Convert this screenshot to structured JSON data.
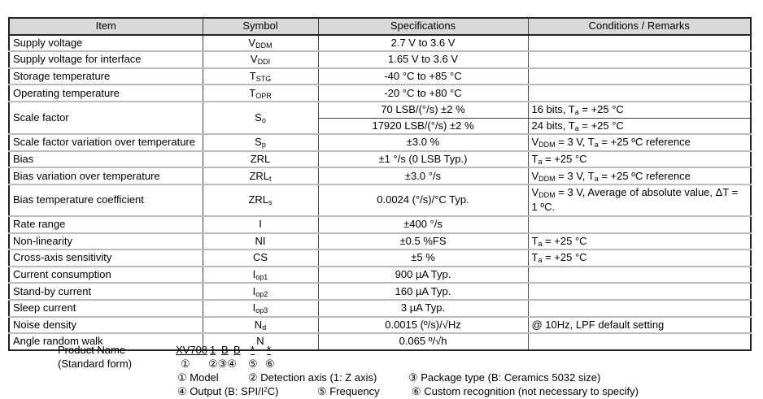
{
  "table": {
    "headers": [
      "Item",
      "Symbol",
      "Specifications",
      "Conditions / Remarks"
    ],
    "rows": [
      {
        "item": "Supply voltage",
        "symbol": {
          "base": "V",
          "sub": "DDM"
        },
        "specs": [
          "2.7 V to 3.6 V"
        ],
        "conds": [
          []
        ]
      },
      {
        "item": "Supply voltage for interface",
        "symbol": {
          "base": "V",
          "sub": "DDI"
        },
        "specs": [
          "1.65 V to 3.6 V"
        ],
        "conds": [
          []
        ]
      },
      {
        "item": "Storage temperature",
        "symbol": {
          "base": "T",
          "sub": "STG"
        },
        "specs": [
          "-40 °C to +85 °C"
        ],
        "conds": [
          []
        ]
      },
      {
        "item": "Operating temperature",
        "symbol": {
          "base": "T",
          "sub": "OPR"
        },
        "specs": [
          "-20 °C to +80 °C"
        ],
        "conds": [
          []
        ]
      },
      {
        "item": "Scale factor",
        "symbol": {
          "base": "S",
          "sub": "o"
        },
        "specs": [
          "70 LSB/(°/s) ±2 %",
          "17920 LSB/(°/s) ±2 %"
        ],
        "conds": [
          [
            {
              "t": "16 bits, T"
            },
            {
              "sub": "a"
            },
            {
              "t": " = +25 °C"
            }
          ],
          [
            {
              "t": "24 bits, T"
            },
            {
              "sub": "a"
            },
            {
              "t": " = +25 °C"
            }
          ]
        ]
      },
      {
        "item": "Scale factor variation over temperature",
        "symbol": {
          "base": "S",
          "sub": "p"
        },
        "specs": [
          "±3.0 %"
        ],
        "conds": [
          [
            {
              "t": "V"
            },
            {
              "sub": "DDM"
            },
            {
              "t": " = 3 V, T"
            },
            {
              "sub": "a"
            },
            {
              "t": " = +25 ºC reference"
            }
          ]
        ]
      },
      {
        "item": "Bias",
        "symbol": {
          "base": "ZRL",
          "sub": ""
        },
        "specs": [
          "±1 °/s (0 LSB Typ.)"
        ],
        "conds": [
          [
            {
              "t": "T"
            },
            {
              "sub": "a"
            },
            {
              "t": " = +25 °C"
            }
          ]
        ]
      },
      {
        "item": "Bias variation over temperature",
        "symbol": {
          "base": "ZRL",
          "sub": "t"
        },
        "specs": [
          "±3.0 °/s"
        ],
        "conds": [
          [
            {
              "t": "V"
            },
            {
              "sub": "DDM"
            },
            {
              "t": " = 3 V, T"
            },
            {
              "sub": "a"
            },
            {
              "t": " = +25 ºC reference"
            }
          ]
        ]
      },
      {
        "item": "Bias temperature coefficient",
        "symbol": {
          "base": "ZRL",
          "sub": "s"
        },
        "specs": [
          "0.0024 (°/s)/°C Typ."
        ],
        "conds": [
          [
            {
              "t": "V"
            },
            {
              "sub": "DDM"
            },
            {
              "t": " = 3 V, Average of absolute value, ΔT = 1 ºC."
            }
          ]
        ],
        "tall": true
      },
      {
        "item": "Rate range",
        "symbol": {
          "base": "I",
          "sub": ""
        },
        "specs": [
          "±400 °/s"
        ],
        "conds": [
          []
        ]
      },
      {
        "item": "Non-linearity",
        "symbol": {
          "base": "NI",
          "sub": ""
        },
        "specs": [
          "±0.5 %FS"
        ],
        "conds": [
          [
            {
              "t": "T"
            },
            {
              "sub": "a"
            },
            {
              "t": " = +25 °C"
            }
          ]
        ]
      },
      {
        "item": "Cross-axis sensitivity",
        "symbol": {
          "base": "CS",
          "sub": ""
        },
        "specs": [
          "±5 %"
        ],
        "conds": [
          [
            {
              "t": "T"
            },
            {
              "sub": "a"
            },
            {
              "t": " = +25 °C"
            }
          ]
        ]
      },
      {
        "item": "Current consumption",
        "symbol": {
          "base": "I",
          "sub": "op1"
        },
        "specs": [
          "900 µA Typ."
        ],
        "conds": [
          []
        ]
      },
      {
        "item": "Stand-by current",
        "symbol": {
          "base": "I",
          "sub": "op2"
        },
        "specs": [
          "160 µA Typ."
        ],
        "conds": [
          []
        ]
      },
      {
        "item": "Sleep current",
        "symbol": {
          "base": "I",
          "sub": "op3"
        },
        "specs": [
          "3 µA Typ."
        ],
        "conds": [
          []
        ]
      },
      {
        "item": "Noise density",
        "symbol": {
          "base": "N",
          "sub": "d"
        },
        "specs": [
          "0.0015 (º/s)/√Hz"
        ],
        "conds": [
          [
            {
              "t": "@ 10Hz, LPF default setting"
            }
          ]
        ]
      },
      {
        "item": "Angle random walk",
        "symbol": {
          "base": "N",
          "sub": ""
        },
        "specs": [
          "0.065 º/√h"
        ],
        "conds": [
          []
        ]
      }
    ]
  },
  "product": {
    "label": "Product Name",
    "sublabel": "(Standard form)",
    "code": [
      "XV708",
      "1",
      "B",
      "B",
      "*",
      "*"
    ],
    "markers": [
      "①",
      "②③④",
      "⑤",
      "⑥"
    ],
    "legend_line1": [
      "① Model",
      "② Detection axis  (1: Z axis)",
      "③ Package type (B: Ceramics 5032 size)"
    ],
    "legend_line2_a": "④ Output (B: SPI/I",
    "legend_line2_sup": "2",
    "legend_line2_b": "C)",
    "legend_line2_rest": [
      "⑤ Frequency",
      "⑥ Custom recognition (not necessary to specify)"
    ]
  }
}
